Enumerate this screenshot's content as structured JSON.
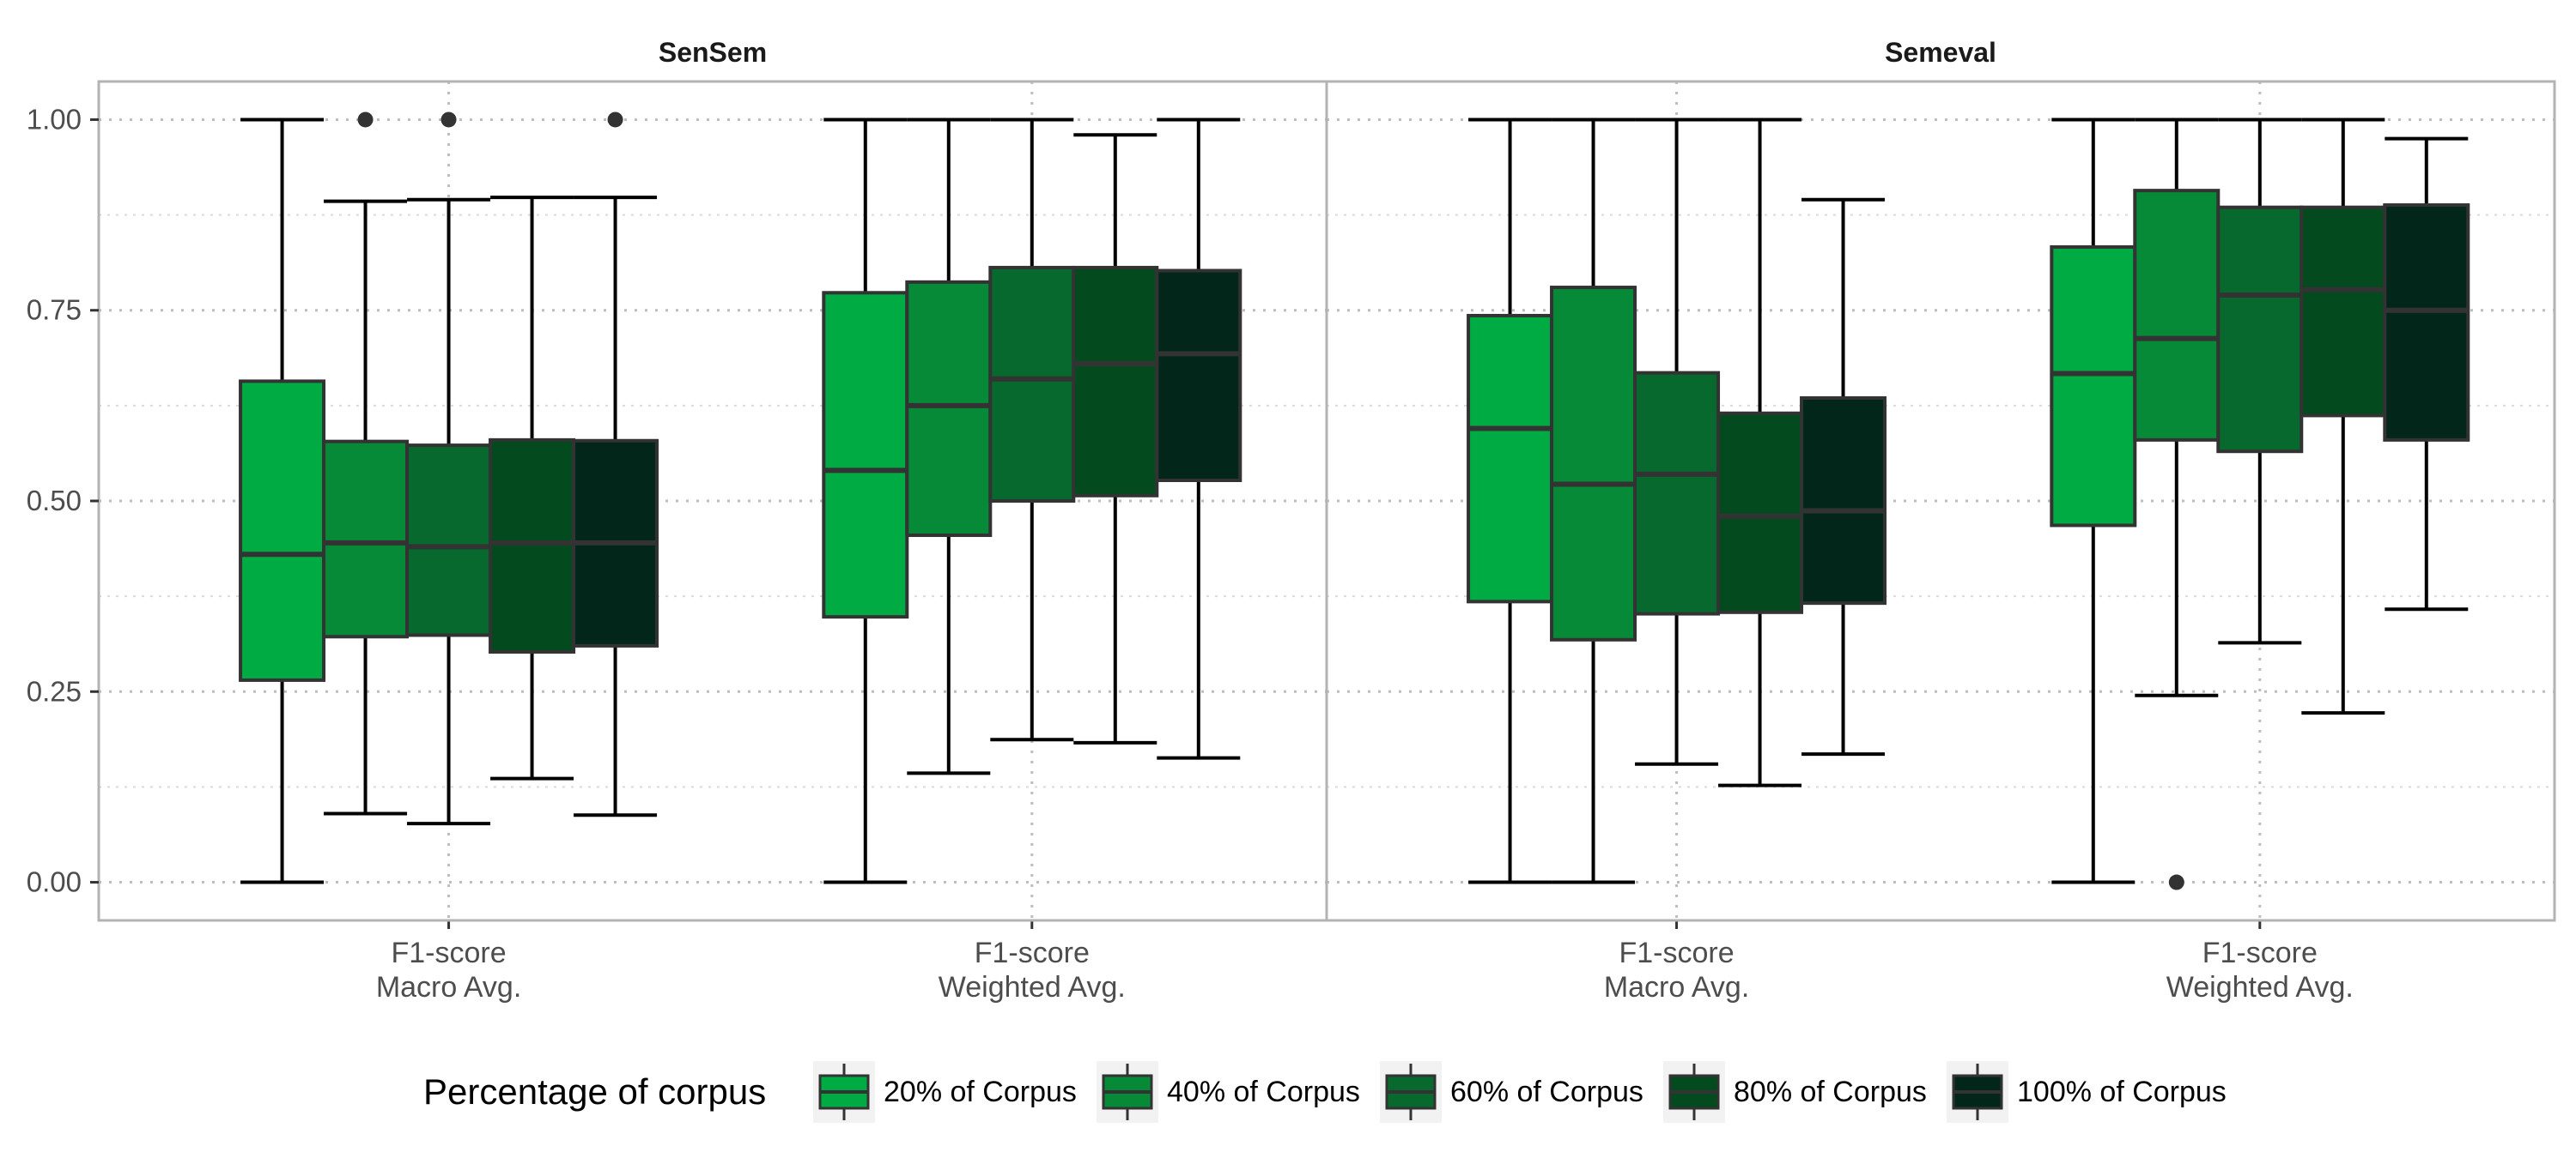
{
  "chart_data": {
    "type": "boxplot",
    "facets": [
      "SenSem",
      "Semeval"
    ],
    "categories": [
      "F1-score\nMacro Avg.",
      "F1-score\nWeighted Avg."
    ],
    "y_ticks": [
      "0.00",
      "0.25",
      "0.50",
      "0.75",
      "1.00"
    ],
    "ylim": [
      -0.05,
      1.05
    ],
    "grid": true,
    "legend": {
      "title": "Percentage of corpus",
      "position": "bottom",
      "items": [
        "20% of Corpus",
        "40% of Corpus",
        "60% of Corpus",
        "80% of Corpus",
        "100% of Corpus"
      ]
    },
    "colors": [
      "#00ab43",
      "#078a38",
      "#07692d",
      "#034a1e",
      "#02271a"
    ],
    "panels": [
      {
        "facet": "SenSem",
        "groups": [
          {
            "category": "F1-score Macro Avg.",
            "boxes": [
              {
                "series": "20% of Corpus",
                "min": 0.0,
                "q1": 0.265,
                "median": 0.43,
                "q3": 0.657,
                "max": 1.0,
                "outliers": []
              },
              {
                "series": "40% of Corpus",
                "min": 0.09,
                "q1": 0.322,
                "median": 0.445,
                "q3": 0.578,
                "max": 0.893,
                "outliers": [
                  1.0
                ]
              },
              {
                "series": "60% of Corpus",
                "min": 0.077,
                "q1": 0.324,
                "median": 0.44,
                "q3": 0.573,
                "max": 0.895,
                "outliers": [
                  1.0
                ]
              },
              {
                "series": "80% of Corpus",
                "min": 0.136,
                "q1": 0.302,
                "median": 0.445,
                "q3": 0.58,
                "max": 0.898,
                "outliers": []
              },
              {
                "series": "100% of Corpus",
                "min": 0.088,
                "q1": 0.31,
                "median": 0.445,
                "q3": 0.579,
                "max": 0.898,
                "outliers": [
                  1.0
                ]
              }
            ]
          },
          {
            "category": "F1-score Weighted Avg.",
            "boxes": [
              {
                "series": "20% of Corpus",
                "min": 0.0,
                "q1": 0.348,
                "median": 0.54,
                "q3": 0.773,
                "max": 1.0,
                "outliers": []
              },
              {
                "series": "40% of Corpus",
                "min": 0.143,
                "q1": 0.455,
                "median": 0.625,
                "q3": 0.787,
                "max": 1.0,
                "outliers": []
              },
              {
                "series": "60% of Corpus",
                "min": 0.187,
                "q1": 0.5,
                "median": 0.66,
                "q3": 0.806,
                "max": 1.0,
                "outliers": []
              },
              {
                "series": "80% of Corpus",
                "min": 0.183,
                "q1": 0.507,
                "median": 0.68,
                "q3": 0.806,
                "max": 0.98,
                "outliers": []
              },
              {
                "series": "100% of Corpus",
                "min": 0.163,
                "q1": 0.527,
                "median": 0.693,
                "q3": 0.802,
                "max": 1.0,
                "outliers": []
              }
            ]
          }
        ]
      },
      {
        "facet": "Semeval",
        "groups": [
          {
            "category": "F1-score Macro Avg.",
            "boxes": [
              {
                "series": "20% of Corpus",
                "min": 0.0,
                "q1": 0.368,
                "median": 0.595,
                "q3": 0.743,
                "max": 1.0,
                "outliers": []
              },
              {
                "series": "40% of Corpus",
                "min": 0.0,
                "q1": 0.318,
                "median": 0.522,
                "q3": 0.78,
                "max": 1.0,
                "outliers": []
              },
              {
                "series": "60% of Corpus",
                "min": 0.155,
                "q1": 0.352,
                "median": 0.535,
                "q3": 0.668,
                "max": 1.0,
                "outliers": []
              },
              {
                "series": "80% of Corpus",
                "min": 0.127,
                "q1": 0.354,
                "median": 0.48,
                "q3": 0.615,
                "max": 1.0,
                "outliers": []
              },
              {
                "series": "100% of Corpus",
                "min": 0.168,
                "q1": 0.366,
                "median": 0.487,
                "q3": 0.635,
                "max": 0.895,
                "outliers": []
              }
            ]
          },
          {
            "category": "F1-score Weighted Avg.",
            "boxes": [
              {
                "series": "20% of Corpus",
                "min": 0.0,
                "q1": 0.468,
                "median": 0.667,
                "q3": 0.833,
                "max": 1.0,
                "outliers": []
              },
              {
                "series": "40% of Corpus",
                "min": 0.245,
                "q1": 0.58,
                "median": 0.713,
                "q3": 0.907,
                "max": 1.0,
                "outliers": [
                  0.0
                ]
              },
              {
                "series": "60% of Corpus",
                "min": 0.314,
                "q1": 0.565,
                "median": 0.77,
                "q3": 0.885,
                "max": 1.0,
                "outliers": []
              },
              {
                "series": "80% of Corpus",
                "min": 0.222,
                "q1": 0.612,
                "median": 0.777,
                "q3": 0.885,
                "max": 1.0,
                "outliers": []
              },
              {
                "series": "100% of Corpus",
                "min": 0.358,
                "q1": 0.58,
                "median": 0.75,
                "q3": 0.888,
                "max": 0.975,
                "outliers": []
              }
            ]
          }
        ]
      }
    ]
  }
}
